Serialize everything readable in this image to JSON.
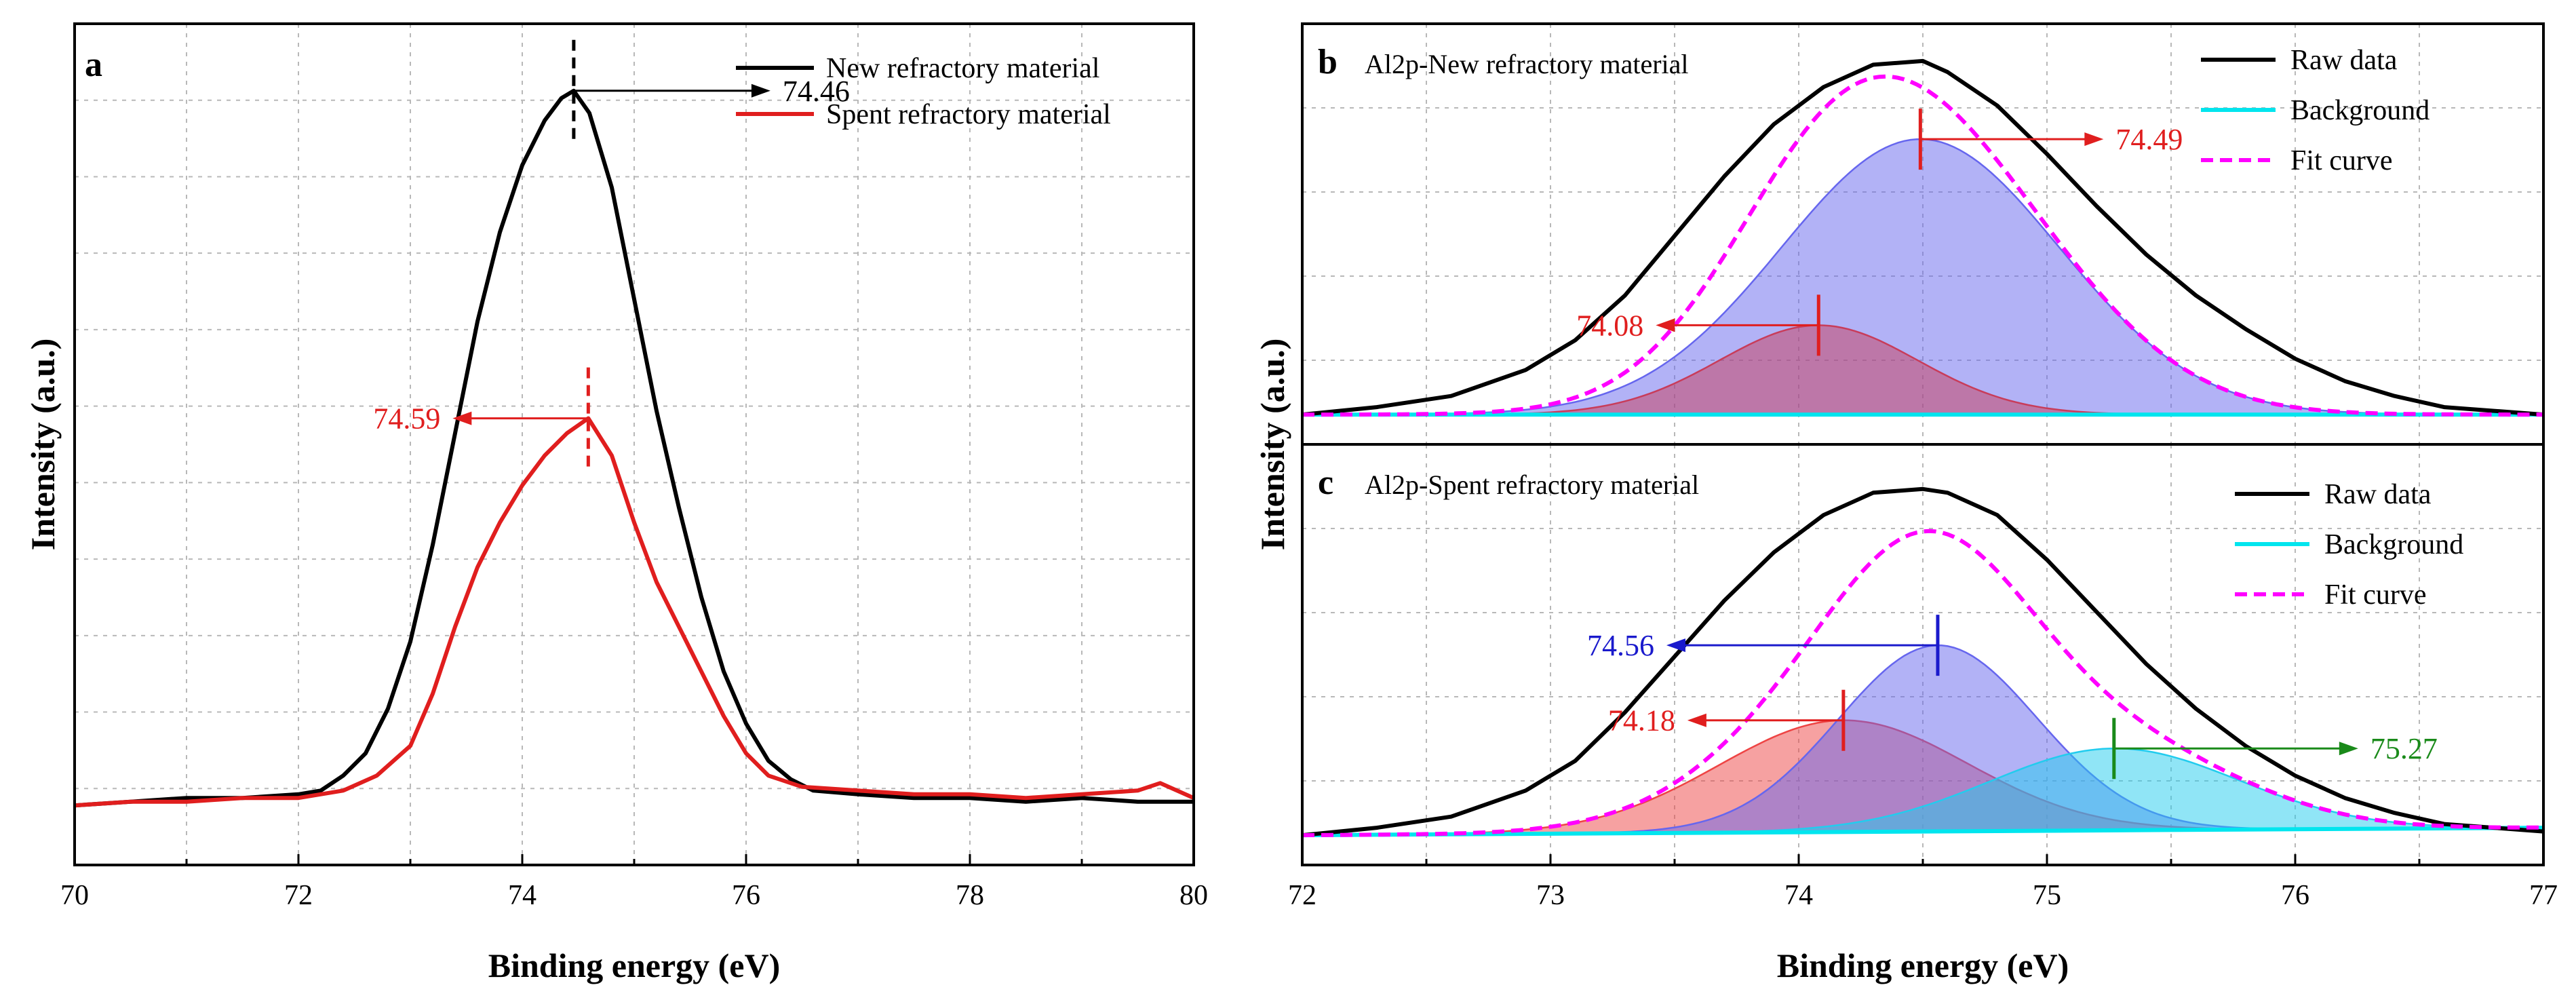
{
  "chart_data": [
    {
      "panel": "a",
      "type": "line",
      "xlabel": "Binding energy (eV)",
      "ylabel": "Intensity (a.u.)",
      "xlim": [
        70,
        80
      ],
      "ylim": [
        -0.08,
        1.05
      ],
      "xticks": [
        70,
        72,
        74,
        76,
        78,
        80
      ],
      "grid": true,
      "legend": "top-right",
      "series": [
        {
          "name": "New refractory material",
          "color": "#000000",
          "x": [
            70.0,
            70.5,
            71.0,
            71.5,
            72.0,
            72.2,
            72.4,
            72.6,
            72.8,
            73.0,
            73.2,
            73.4,
            73.6,
            73.8,
            74.0,
            74.2,
            74.35,
            74.46,
            74.6,
            74.8,
            75.0,
            75.2,
            75.4,
            75.6,
            75.8,
            76.0,
            76.2,
            76.4,
            76.6,
            77.0,
            77.5,
            78.0,
            78.5,
            79.0,
            79.5,
            80.0
          ],
          "y": [
            0.0,
            0.005,
            0.01,
            0.01,
            0.015,
            0.02,
            0.04,
            0.07,
            0.13,
            0.22,
            0.35,
            0.5,
            0.65,
            0.77,
            0.86,
            0.92,
            0.95,
            0.96,
            0.93,
            0.83,
            0.68,
            0.53,
            0.4,
            0.28,
            0.18,
            0.11,
            0.06,
            0.035,
            0.02,
            0.015,
            0.01,
            0.01,
            0.005,
            0.01,
            0.005,
            0.005
          ]
        },
        {
          "name": "Spent refractory material",
          "color": "#e01e1e",
          "x": [
            70.0,
            70.5,
            71.0,
            71.5,
            72.0,
            72.4,
            72.7,
            73.0,
            73.2,
            73.4,
            73.6,
            73.8,
            74.0,
            74.2,
            74.4,
            74.59,
            74.8,
            75.0,
            75.2,
            75.4,
            75.6,
            75.8,
            76.0,
            76.2,
            76.5,
            77.0,
            77.5,
            78.0,
            78.5,
            79.0,
            79.5,
            79.7,
            80.0
          ],
          "y": [
            0.0,
            0.005,
            0.005,
            0.01,
            0.01,
            0.02,
            0.04,
            0.08,
            0.15,
            0.24,
            0.32,
            0.38,
            0.43,
            0.47,
            0.5,
            0.52,
            0.47,
            0.38,
            0.3,
            0.24,
            0.18,
            0.12,
            0.07,
            0.04,
            0.025,
            0.02,
            0.015,
            0.015,
            0.01,
            0.015,
            0.02,
            0.03,
            0.01
          ]
        }
      ],
      "annotations": [
        {
          "label": "74.46",
          "x": 74.46,
          "direction": "right",
          "color": "#000000"
        },
        {
          "label": "74.59",
          "x": 74.59,
          "direction": "left",
          "color": "#e01e1e"
        }
      ]
    },
    {
      "panel": "b",
      "type": "area",
      "title": "Al2p-New refractory material",
      "xlim": [
        72,
        77
      ],
      "ylim": [
        -0.08,
        1.05
      ],
      "legend": "top-right",
      "series": [
        {
          "name": "Raw data",
          "color": "#000000",
          "x": [
            72.0,
            72.3,
            72.6,
            72.9,
            73.1,
            73.3,
            73.5,
            73.7,
            73.9,
            74.1,
            74.3,
            74.5,
            74.6,
            74.8,
            75.0,
            75.2,
            75.4,
            75.6,
            75.8,
            76.0,
            76.2,
            76.4,
            76.6,
            76.8,
            77.0
          ],
          "y": [
            0.0,
            0.02,
            0.05,
            0.12,
            0.2,
            0.32,
            0.48,
            0.64,
            0.78,
            0.88,
            0.94,
            0.95,
            0.92,
            0.83,
            0.7,
            0.56,
            0.43,
            0.32,
            0.23,
            0.15,
            0.09,
            0.05,
            0.02,
            0.01,
            0.0
          ]
        },
        {
          "name": "Background",
          "color": "#00e5ee",
          "x": [
            72.0,
            77.0
          ],
          "y": [
            0.0,
            0.0
          ]
        },
        {
          "name": "Fit curve",
          "color": "#ff00ff",
          "dashed": true,
          "fit": true
        }
      ],
      "components": [
        {
          "center": 74.49,
          "amplitude": 0.74,
          "sigma": 0.56,
          "color": "#6666ee"
        },
        {
          "center": 74.08,
          "amplitude": 0.24,
          "sigma": 0.4,
          "color": "#c83c5a"
        }
      ],
      "annotations": [
        {
          "label": "74.49",
          "x": 74.49,
          "direction": "right",
          "color": "#e01e1e"
        },
        {
          "label": "74.08",
          "x": 74.08,
          "direction": "left",
          "color": "#e01e1e"
        }
      ]
    },
    {
      "panel": "c",
      "type": "area",
      "title": "Al2p-Spent refractory material",
      "xlabel": "Binding energy (eV)",
      "xlim": [
        72,
        77
      ],
      "ylim": [
        -0.08,
        1.05
      ],
      "xticks": [
        72,
        73,
        74,
        75,
        76,
        77
      ],
      "legend": "top-right",
      "series": [
        {
          "name": "Raw data",
          "color": "#000000",
          "x": [
            72.0,
            72.3,
            72.6,
            72.9,
            73.1,
            73.3,
            73.5,
            73.7,
            73.9,
            74.1,
            74.3,
            74.5,
            74.6,
            74.8,
            75.0,
            75.2,
            75.4,
            75.6,
            75.8,
            76.0,
            76.2,
            76.4,
            76.6,
            76.8,
            77.0
          ],
          "y": [
            0.0,
            0.02,
            0.05,
            0.12,
            0.2,
            0.33,
            0.48,
            0.63,
            0.76,
            0.86,
            0.92,
            0.93,
            0.92,
            0.86,
            0.74,
            0.6,
            0.46,
            0.34,
            0.24,
            0.16,
            0.1,
            0.06,
            0.03,
            0.02,
            0.01
          ]
        },
        {
          "name": "Background",
          "color": "#00e5ee",
          "x": [
            72.0,
            77.0
          ],
          "y": [
            0.0,
            0.02
          ]
        },
        {
          "name": "Fit curve",
          "color": "#ff00ff",
          "dashed": true,
          "fit": true
        }
      ],
      "components": [
        {
          "center": 74.18,
          "amplitude": 0.3,
          "sigma": 0.5,
          "color": "#ee4444"
        },
        {
          "center": 74.56,
          "amplitude": 0.5,
          "sigma": 0.4,
          "color": "#6666ee"
        },
        {
          "center": 75.27,
          "amplitude": 0.22,
          "sigma": 0.5,
          "color": "#22ccee"
        }
      ],
      "annotations": [
        {
          "label": "74.56",
          "x": 74.56,
          "direction": "left",
          "color": "#1a1acc"
        },
        {
          "label": "74.18",
          "x": 74.18,
          "direction": "left",
          "color": "#e01e1e"
        },
        {
          "label": "75.27",
          "x": 75.27,
          "direction": "right",
          "color": "#1a8a1a"
        }
      ]
    }
  ],
  "labels": {
    "panel_a": "a",
    "panel_b": "b",
    "panel_c": "c",
    "title_b": "Al2p-New refractory material",
    "title_c": "Al2p-Spent refractory material",
    "xlabel": "Binding energy (eV)",
    "ylabel": "Intensity (a.u.)"
  }
}
